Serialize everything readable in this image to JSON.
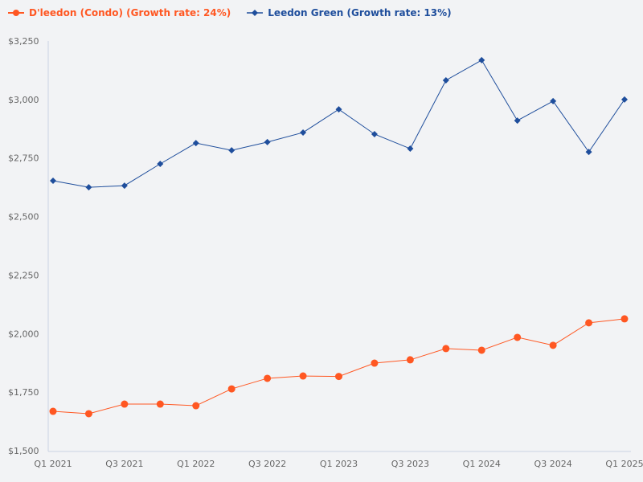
{
  "chart_data": {
    "type": "line",
    "title": "",
    "xlabel": "",
    "ylabel": "",
    "ylim": [
      1500,
      3250
    ],
    "yticks": [
      1500,
      1750,
      2000,
      2250,
      2500,
      2750,
      3000,
      3250
    ],
    "ytick_labels": [
      "$1,500",
      "$1,750",
      "$2,000",
      "$2,250",
      "$2,500",
      "$2,750",
      "$3,000",
      "$3,250"
    ],
    "x": [
      "Q1 2021",
      "Q2 2021",
      "Q3 2021",
      "Q4 2021",
      "Q1 2022",
      "Q2 2022",
      "Q3 2022",
      "Q4 2022",
      "Q1 2023",
      "Q2 2023",
      "Q3 2023",
      "Q4 2023",
      "Q1 2024",
      "Q2 2024",
      "Q3 2024",
      "Q4 2024",
      "Q1 2025"
    ],
    "xtick_labels": [
      "Q1 2021",
      "Q3 2021",
      "Q1 2022",
      "Q3 2022",
      "Q1 2023",
      "Q3 2023",
      "Q1 2024",
      "Q3 2024",
      "Q1 2025"
    ],
    "legend_position": "top-left",
    "grid": false,
    "series": [
      {
        "name": "D'leedon (Condo) (Growth rate: 24%)",
        "color": "#ff5722",
        "marker": "circle",
        "values": [
          1668,
          1658,
          1699,
          1699,
          1692,
          1764,
          1809,
          1819,
          1817,
          1874,
          1888,
          1936,
          1929,
          1984,
          1950,
          2046,
          2063
        ]
      },
      {
        "name": "Leedon Green (Growth rate: 13%)",
        "color": "#1f4e9c",
        "marker": "diamond",
        "values": [
          2653,
          2625,
          2632,
          2725,
          2814,
          2783,
          2818,
          2859,
          2958,
          2852,
          2790,
          3082,
          3168,
          2910,
          2993,
          2776,
          3000
        ]
      }
    ]
  }
}
